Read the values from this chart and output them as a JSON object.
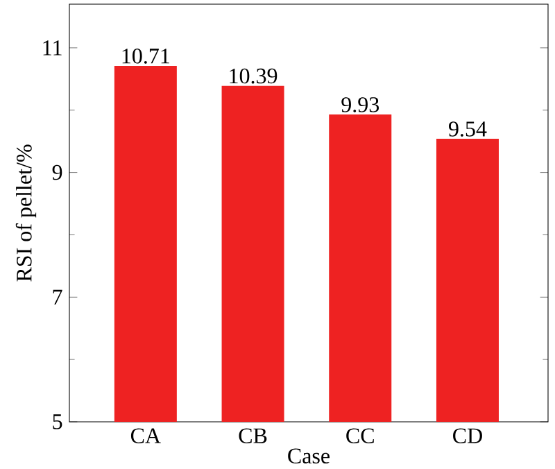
{
  "chart_data": {
    "type": "bar",
    "xlabel": "Case",
    "ylabel": "RSI of pellet/%",
    "categories": [
      "CA",
      "CB",
      "CC",
      "CD"
    ],
    "values": [
      10.71,
      10.39,
      9.93,
      9.54
    ],
    "color": "#ee2222",
    "ylim": [
      5,
      11.7
    ],
    "yticks": [
      5,
      7,
      9,
      11
    ],
    "data_labels": true,
    "grid": false
  }
}
